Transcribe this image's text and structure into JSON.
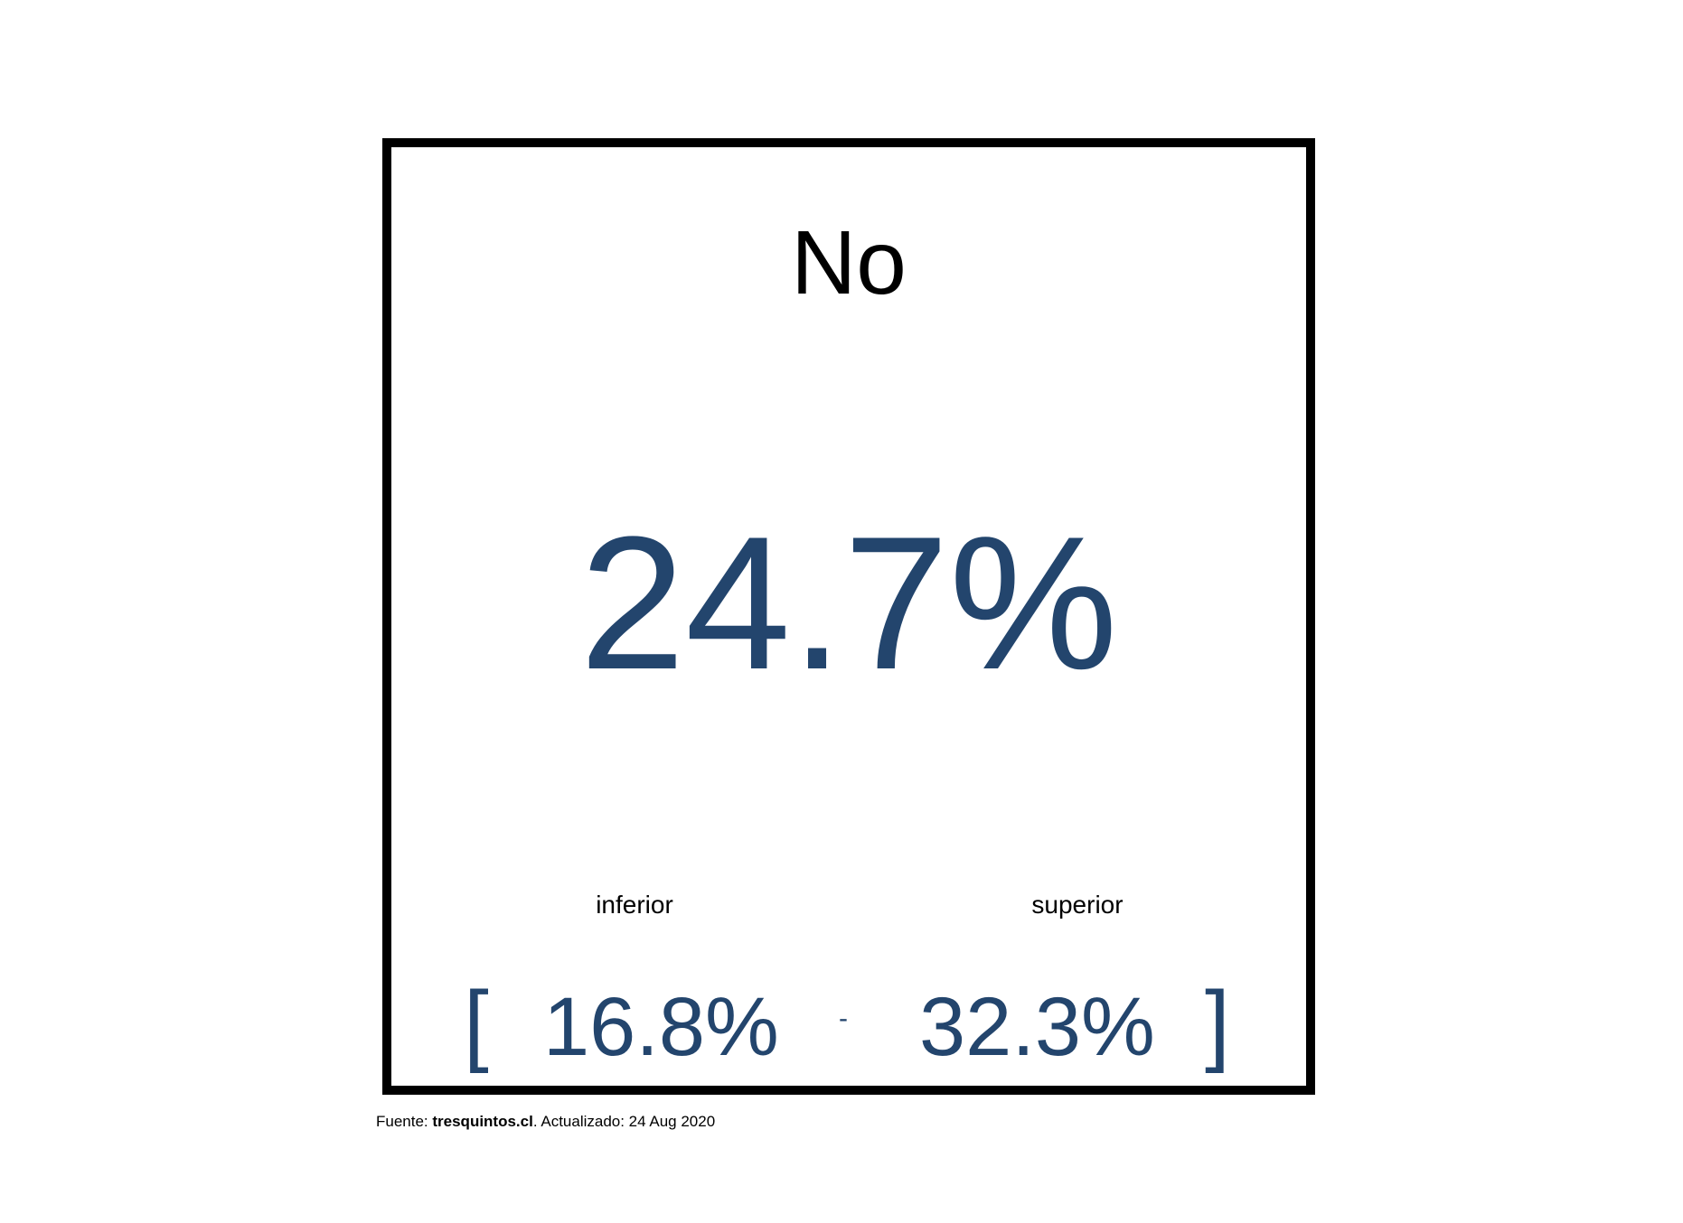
{
  "card": {
    "title": "No",
    "value": "24.7%",
    "lower_label": "inferior",
    "upper_label": "superior",
    "bracket_open": "[",
    "lower_value": "16.8%",
    "separator": "-",
    "upper_value": "32.3%",
    "bracket_close": "]"
  },
  "footer": {
    "source_prefix": "Fuente: ",
    "source_name": "tresquintos.cl",
    "updated_text": ". Actualizado: 24 Aug 2020"
  },
  "colors": {
    "value": "#23456d",
    "border": "#000000",
    "background": "#ffffff"
  }
}
